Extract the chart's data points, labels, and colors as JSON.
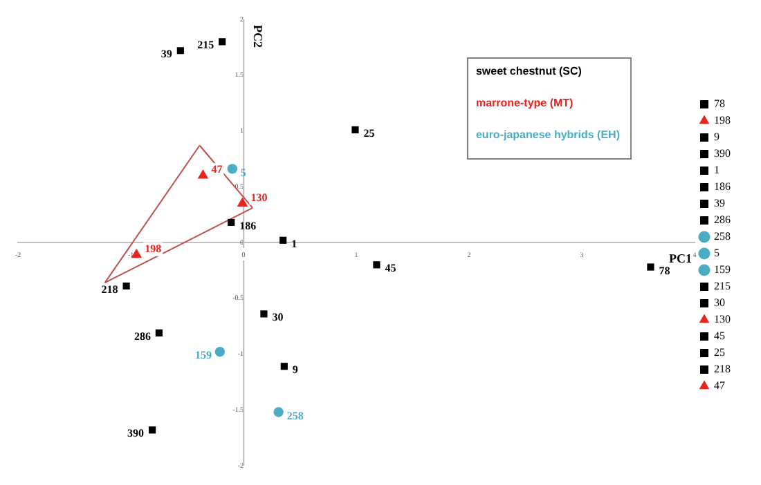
{
  "chart_data": {
    "type": "scatter",
    "xlabel": "PC1",
    "ylabel": "PC2",
    "xlim": [
      -2,
      4
    ],
    "xticks": [
      -2,
      -1,
      0,
      1,
      2,
      3,
      4
    ],
    "ylim": [
      -2,
      2
    ],
    "yticks": [
      -2,
      -1.5,
      -1,
      -0.5,
      0,
      0.5,
      1,
      1.5,
      2
    ],
    "grid": false,
    "legend": "right",
    "annotations": [
      "sweet chestnut (SC)",
      "marrone-type (MT)",
      "euro-japanese hybrids (EH)"
    ],
    "series": [
      {
        "name": "78",
        "color": "#000000",
        "marker": "square",
        "x": [
          3.61
        ],
        "values": [
          -0.22
        ]
      },
      {
        "name": "198",
        "color": "#e8241e",
        "marker": "triangle",
        "x": [
          -0.95
        ],
        "values": [
          -0.11
        ]
      },
      {
        "name": "9",
        "color": "#000000",
        "marker": "square",
        "x": [
          0.36
        ],
        "values": [
          -1.11
        ]
      },
      {
        "name": "390",
        "color": "#000000",
        "marker": "square",
        "x": [
          -0.81
        ],
        "values": [
          -1.68
        ]
      },
      {
        "name": "1",
        "color": "#000000",
        "marker": "square",
        "x": [
          0.35
        ],
        "values": [
          0.02
        ]
      },
      {
        "name": "186",
        "color": "#000000",
        "marker": "square",
        "x": [
          -0.11
        ],
        "values": [
          0.18
        ]
      },
      {
        "name": "39",
        "color": "#000000",
        "marker": "square",
        "x": [
          -0.56
        ],
        "values": [
          1.72
        ]
      },
      {
        "name": "286",
        "color": "#000000",
        "marker": "square",
        "x": [
          -0.75
        ],
        "values": [
          -0.81
        ]
      },
      {
        "name": "258",
        "color": "#4bacc6",
        "marker": "circle",
        "x": [
          0.31
        ],
        "values": [
          -1.52
        ]
      },
      {
        "name": "5",
        "color": "#4bacc6",
        "marker": "circle",
        "x": [
          -0.1
        ],
        "values": [
          0.66
        ]
      },
      {
        "name": "159",
        "color": "#4bacc6",
        "marker": "circle",
        "x": [
          -0.21
        ],
        "values": [
          -0.98
        ]
      },
      {
        "name": "215",
        "color": "#000000",
        "marker": "square",
        "x": [
          -0.19
        ],
        "values": [
          1.8
        ]
      },
      {
        "name": "30",
        "color": "#000000",
        "marker": "square",
        "x": [
          0.18
        ],
        "values": [
          -0.64
        ]
      },
      {
        "name": "130",
        "color": "#e8241e",
        "marker": "triangle",
        "x": [
          -0.01
        ],
        "values": [
          0.35
        ]
      },
      {
        "name": "45",
        "color": "#000000",
        "marker": "square",
        "x": [
          1.18
        ],
        "values": [
          -0.2
        ]
      },
      {
        "name": "25",
        "color": "#000000",
        "marker": "square",
        "x": [
          0.99
        ],
        "values": [
          1.01
        ]
      },
      {
        "name": "218",
        "color": "#000000",
        "marker": "square",
        "x": [
          -1.04
        ],
        "values": [
          -0.39
        ]
      },
      {
        "name": "47",
        "color": "#e8241e",
        "marker": "triangle",
        "x": [
          -0.36
        ],
        "values": [
          0.6
        ]
      },
      {
        "type": "line",
        "color": "#c0504d",
        "marker": "none",
        "x": [
          -0.39,
          0.08
        ],
        "values": [
          0.87,
          0.31
        ]
      },
      {
        "type": "line",
        "color": "#c0504d",
        "marker": "none",
        "x": [
          -1.23,
          0.08
        ],
        "values": [
          -0.36,
          0.31
        ]
      },
      {
        "type": "line",
        "color": "#c0504d",
        "marker": "none",
        "x": [
          -1.23,
          -0.39
        ],
        "values": [
          -0.36,
          0.87
        ]
      }
    ]
  }
}
